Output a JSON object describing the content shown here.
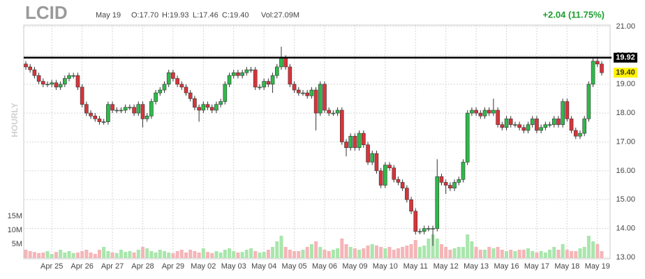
{
  "chart_data": {
    "type": "candlestick",
    "header": {
      "ticker": "LCID",
      "date": "May 19",
      "open": "O:17.70",
      "high": "H:19.93",
      "low": "L:17.46",
      "close": "C:19.40",
      "volume": "Vol:27.09M",
      "change": "+2.04 (11.75%)"
    },
    "timeframe": "HOURLY",
    "ylim": [
      13,
      21
    ],
    "yticks": [
      {
        "value": 13,
        "label": "13.00"
      },
      {
        "value": 14,
        "label": "14.00"
      },
      {
        "value": 15,
        "label": "15.00"
      },
      {
        "value": 16,
        "label": "16.00"
      },
      {
        "value": 17,
        "label": "17.00"
      },
      {
        "value": 18,
        "label": "18.00"
      },
      {
        "value": 19,
        "label": "19.00"
      },
      {
        "value": 20,
        "label": "20.00"
      },
      {
        "value": 21,
        "label": "21.00"
      }
    ],
    "volume_lim": [
      0,
      15
    ],
    "volume_ticks": [
      {
        "value": 5,
        "label": "5M"
      },
      {
        "value": 10,
        "label": "10M"
      },
      {
        "value": 15,
        "label": "15M"
      }
    ],
    "xlim": [
      0,
      133
    ],
    "xticks": [
      {
        "value": 6,
        "label": "Apr 25"
      },
      {
        "value": 13,
        "label": "Apr 26"
      },
      {
        "value": 20,
        "label": "Apr 27"
      },
      {
        "value": 27,
        "label": "Apr 28"
      },
      {
        "value": 34,
        "label": "Apr 29"
      },
      {
        "value": 41,
        "label": "May 02"
      },
      {
        "value": 48,
        "label": "May 03"
      },
      {
        "value": 55,
        "label": "May 04"
      },
      {
        "value": 62,
        "label": "May 05"
      },
      {
        "value": 69,
        "label": "May 06"
      },
      {
        "value": 76,
        "label": "May 09"
      },
      {
        "value": 83,
        "label": "May 10"
      },
      {
        "value": 90,
        "label": "May 11"
      },
      {
        "value": 97,
        "label": "May 12"
      },
      {
        "value": 104,
        "label": "May 13"
      },
      {
        "value": 111,
        "label": "May 16"
      },
      {
        "value": 118,
        "label": "May 17"
      },
      {
        "value": 125,
        "label": "May 18"
      },
      {
        "value": 132,
        "label": "May 19"
      }
    ],
    "level_line": 19.92,
    "last_price": {
      "value": 19.4,
      "label": "19.40"
    },
    "up_color": "#2fb94a",
    "down_color": "#d8343b",
    "volume_up_color": "#a9e6ac",
    "volume_down_color": "#f5b5b8",
    "grid": true,
    "open": [
      19.7,
      19.6,
      19.5,
      19.3,
      19.1,
      19.0,
      19.0,
      19.05,
      18.9,
      19.0,
      19.2,
      19.3,
      19.3,
      18.9,
      18.3,
      18.0,
      17.9,
      17.8,
      17.7,
      17.7,
      18.3,
      18.1,
      18.1,
      18.1,
      18.2,
      18.2,
      18.0,
      18.3,
      17.8,
      17.9,
      18.4,
      18.7,
      18.8,
      19.0,
      19.4,
      19.2,
      19.0,
      18.9,
      18.7,
      18.5,
      18.2,
      18.1,
      18.3,
      18.2,
      18.1,
      18.3,
      18.4,
      19.0,
      19.3,
      19.4,
      19.3,
      19.4,
      19.5,
      19.5,
      18.9,
      18.9,
      19.1,
      19.0,
      19.3,
      19.6,
      19.9,
      19.6,
      19.0,
      18.8,
      18.7,
      18.7,
      18.6,
      18.8,
      18.0,
      19.0,
      18.1,
      18.0,
      18.0,
      18.1,
      17.0,
      16.8,
      17.2,
      16.8,
      17.3,
      16.9,
      16.3,
      16.6,
      16.0,
      15.5,
      16.2,
      16.1,
      15.7,
      15.6,
      15.4,
      15.0,
      14.6,
      13.9,
      13.9,
      14.0,
      14.0,
      14.0,
      15.8,
      15.6,
      15.5,
      15.4,
      15.6,
      15.7,
      16.3,
      18.0,
      18.1,
      18.0,
      17.9,
      18.1,
      18.0,
      18.1,
      17.6,
      17.5,
      17.8,
      17.6,
      17.6,
      17.5,
      17.4,
      17.6,
      17.8,
      17.4,
      17.5,
      17.6,
      17.6,
      17.8,
      17.6,
      18.4,
      17.8,
      17.4,
      17.2,
      17.3,
      17.8,
      19.0,
      19.8,
      19.7
    ],
    "high": [
      19.8,
      19.7,
      19.6,
      19.4,
      19.2,
      19.1,
      19.15,
      19.15,
      19.1,
      19.3,
      19.4,
      19.4,
      19.4,
      19.0,
      18.4,
      18.1,
      18.0,
      17.9,
      17.8,
      18.4,
      18.4,
      18.2,
      18.2,
      18.3,
      18.3,
      18.3,
      18.4,
      18.4,
      18.0,
      18.5,
      18.8,
      18.9,
      19.1,
      19.5,
      19.5,
      19.3,
      19.1,
      19.0,
      18.8,
      18.6,
      18.3,
      18.4,
      18.4,
      18.3,
      18.4,
      18.5,
      19.1,
      19.4,
      19.5,
      19.5,
      19.5,
      19.6,
      19.6,
      19.6,
      19.0,
      19.2,
      19.2,
      19.4,
      19.7,
      20.3,
      20.0,
      19.7,
      19.1,
      18.9,
      18.8,
      18.8,
      18.9,
      18.9,
      19.1,
      19.1,
      18.2,
      18.1,
      18.2,
      18.2,
      17.1,
      17.3,
      17.3,
      17.4,
      17.4,
      17.0,
      16.7,
      16.7,
      16.1,
      16.3,
      16.3,
      16.2,
      15.8,
      15.7,
      15.5,
      15.1,
      14.7,
      14.0,
      14.1,
      14.1,
      14.1,
      16.4,
      15.9,
      15.7,
      15.6,
      15.7,
      15.8,
      16.4,
      18.1,
      18.2,
      18.2,
      18.1,
      18.2,
      18.2,
      18.5,
      18.2,
      17.7,
      17.9,
      17.9,
      17.7,
      17.7,
      17.6,
      17.7,
      17.9,
      17.9,
      17.6,
      17.7,
      17.7,
      17.9,
      17.9,
      18.5,
      18.5,
      17.9,
      17.5,
      17.4,
      17.9,
      19.1,
      19.93,
      19.9,
      19.8
    ],
    "low": [
      19.5,
      19.4,
      19.2,
      19.0,
      18.9,
      18.9,
      18.9,
      18.8,
      18.8,
      18.9,
      19.1,
      19.2,
      18.8,
      18.2,
      17.9,
      17.8,
      17.7,
      17.6,
      17.6,
      17.6,
      18.0,
      18.0,
      18.0,
      18.0,
      18.1,
      17.9,
      17.9,
      17.5,
      17.7,
      17.8,
      18.3,
      18.6,
      18.7,
      18.9,
      19.1,
      18.9,
      18.8,
      18.6,
      18.4,
      18.1,
      17.7,
      18.0,
      18.1,
      18.0,
      18.0,
      18.2,
      18.3,
      18.9,
      19.2,
      19.2,
      19.2,
      19.3,
      19.4,
      18.8,
      18.8,
      18.8,
      18.9,
      18.7,
      19.2,
      19.5,
      19.5,
      18.9,
      18.7,
      18.6,
      18.6,
      18.5,
      18.5,
      17.4,
      17.9,
      18.0,
      17.9,
      17.9,
      17.9,
      16.9,
      16.5,
      16.7,
      16.7,
      16.7,
      16.8,
      16.2,
      16.2,
      15.9,
      15.4,
      15.4,
      16.0,
      15.6,
      15.5,
      15.3,
      14.9,
      14.5,
      13.8,
      13.8,
      13.8,
      13.9,
      13.4,
      13.9,
      15.5,
      15.2,
      15.3,
      15.3,
      15.5,
      15.6,
      16.2,
      17.9,
      17.9,
      17.8,
      17.8,
      17.9,
      17.9,
      17.5,
      17.4,
      17.4,
      17.5,
      17.5,
      17.4,
      17.3,
      17.3,
      17.5,
      17.3,
      17.3,
      17.4,
      17.5,
      17.5,
      17.5,
      17.5,
      17.7,
      17.3,
      17.1,
      17.1,
      17.2,
      17.7,
      18.9,
      19.6,
      19.3
    ],
    "close": [
      19.6,
      19.5,
      19.3,
      19.1,
      19.0,
      19.0,
      19.05,
      18.9,
      19.0,
      19.2,
      19.3,
      19.3,
      18.9,
      18.3,
      18.0,
      17.9,
      17.8,
      17.7,
      17.7,
      18.3,
      18.1,
      18.1,
      18.1,
      18.2,
      18.2,
      18.0,
      18.3,
      17.8,
      17.9,
      18.4,
      18.7,
      18.8,
      19.0,
      19.4,
      19.2,
      19.0,
      18.9,
      18.7,
      18.5,
      18.2,
      18.1,
      18.3,
      18.2,
      18.1,
      18.3,
      18.4,
      19.0,
      19.3,
      19.4,
      19.3,
      19.4,
      19.5,
      19.5,
      18.9,
      18.9,
      19.1,
      19.0,
      19.3,
      19.6,
      19.9,
      19.6,
      19.0,
      18.8,
      18.7,
      18.7,
      18.6,
      18.8,
      18.0,
      19.0,
      18.1,
      18.0,
      18.0,
      18.1,
      17.0,
      16.8,
      17.2,
      16.8,
      17.3,
      16.9,
      16.3,
      16.6,
      16.0,
      15.5,
      16.2,
      16.1,
      15.7,
      15.6,
      15.4,
      15.0,
      14.6,
      13.9,
      13.9,
      14.0,
      14.0,
      14.0,
      15.8,
      15.6,
      15.5,
      15.4,
      15.6,
      15.7,
      16.3,
      18.0,
      18.1,
      18.0,
      17.9,
      18.1,
      18.0,
      18.1,
      17.6,
      17.5,
      17.8,
      17.6,
      17.6,
      17.5,
      17.4,
      17.6,
      17.8,
      17.4,
      17.5,
      17.6,
      17.6,
      17.8,
      17.6,
      18.4,
      17.8,
      17.4,
      17.2,
      17.3,
      17.8,
      19.0,
      19.8,
      19.7,
      19.4
    ],
    "volume": [
      3,
      2.5,
      2.2,
      1.8,
      2,
      2.5,
      1.5,
      2.2,
      3,
      2,
      2.5,
      1.8,
      2,
      2.5,
      3,
      2,
      1.5,
      3,
      4,
      2.5,
      2,
      1.8,
      3,
      2.2,
      2.5,
      2,
      3,
      4,
      3.5,
      2.5,
      2,
      3,
      2.5,
      2,
      1.8,
      2.5,
      3,
      2,
      3,
      2.5,
      2,
      3.5,
      2.2,
      1.8,
      2.5,
      2,
      3,
      3.5,
      2.5,
      2,
      2.2,
      3,
      3.5,
      2.5,
      2,
      2.2,
      3,
      4,
      6,
      8,
      4,
      3,
      2.5,
      2.5,
      3,
      4,
      5,
      6,
      4,
      3,
      2.5,
      3,
      3.5,
      7,
      5,
      4,
      3.5,
      3,
      3.5,
      4.5,
      5,
      4.5,
      4,
      3.5,
      4,
      3,
      3.5,
      4,
      4.5,
      5,
      6.5,
      4,
      4.5,
      7,
      8.5,
      7,
      5,
      4,
      3,
      3.5,
      4,
      4,
      8.5,
      6,
      4,
      3,
      3,
      4,
      3.5,
      4,
      3,
      2.5,
      3,
      2.5,
      3,
      3,
      3.5,
      2.5,
      2,
      2.5,
      2,
      3,
      4,
      3,
      5,
      3,
      2.5,
      2.5,
      3.5,
      4,
      8,
      6,
      5,
      2.5
    ]
  }
}
